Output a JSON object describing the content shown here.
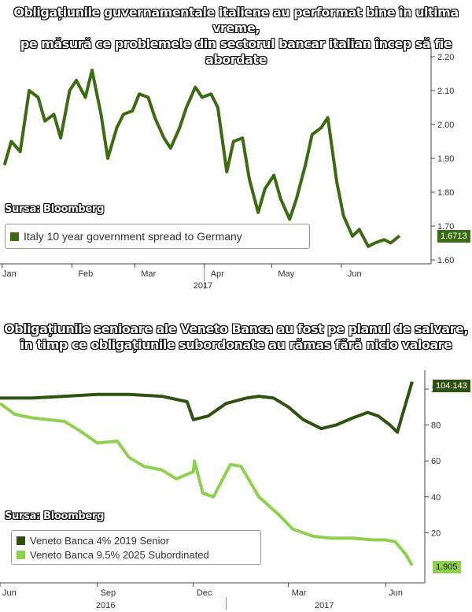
{
  "charts": [
    {
      "title_line1": "Obligațiunile guvernamentale italiene au performat bine în ultima vreme,",
      "title_line2": "pe măsură ce problemele din sectorul bancar italian încep să fie abordate",
      "source": "Sursa: Bloomberg",
      "last_value_label": "1.6713",
      "colors": {
        "line": "#3d6b12",
        "tag": "#3d6b12"
      }
    },
    {
      "title_line1": "Obligațiunile senioare ale Veneto Banca au fost pe planul de salvare,",
      "title_line2": "în timp ce obligațiunile subordonate au rămas fără nicio valoare",
      "source": "Sursa: Bloomberg",
      "last_value_label_senior": "104.143",
      "last_value_label_sub": "1.905",
      "colors": {
        "senior": "#2e5210",
        "sub": "#8fd14f"
      }
    }
  ],
  "chart_data": [
    {
      "type": "line",
      "title": "Obligațiunile guvernamentale italiene au performat bine în ultima vreme, pe măsură ce problemele din sectorul bancar italian încep să fie abordate",
      "x_tick_labels": [
        "Jan",
        "Feb",
        "Mar",
        "Apr",
        "May",
        "Jun"
      ],
      "x_year_label": "2017",
      "y_tick_labels": [
        "2.20",
        "2.10",
        "2.00",
        "1.90",
        "1.80",
        "1.70",
        "1.60"
      ],
      "ylim": [
        1.6,
        2.22
      ],
      "legend_position": "bottom-left",
      "series": [
        {
          "name": "Italy 10 year government spread to Germany",
          "x": [
            "2017-01-02",
            "2017-01-05",
            "2017-01-09",
            "2017-01-13",
            "2017-01-17",
            "2017-01-20",
            "2017-01-24",
            "2017-01-27",
            "2017-01-31",
            "2017-02-03",
            "2017-02-07",
            "2017-02-10",
            "2017-02-14",
            "2017-02-17",
            "2017-02-21",
            "2017-02-24",
            "2017-02-28",
            "2017-03-03",
            "2017-03-07",
            "2017-03-10",
            "2017-03-14",
            "2017-03-17",
            "2017-03-21",
            "2017-03-24",
            "2017-03-28",
            "2017-03-31",
            "2017-04-04",
            "2017-04-07",
            "2017-04-11",
            "2017-04-14",
            "2017-04-18",
            "2017-04-21",
            "2017-04-25",
            "2017-04-28",
            "2017-05-02",
            "2017-05-05",
            "2017-05-09",
            "2017-05-12",
            "2017-05-16",
            "2017-05-19",
            "2017-05-23",
            "2017-05-26",
            "2017-05-30",
            "2017-06-02",
            "2017-06-06",
            "2017-06-09",
            "2017-06-13",
            "2017-06-16",
            "2017-06-20",
            "2017-06-23",
            "2017-06-27"
          ],
          "values": [
            1.88,
            1.95,
            1.92,
            2.1,
            2.08,
            2.01,
            2.03,
            1.96,
            2.1,
            2.13,
            2.08,
            2.16,
            2.03,
            1.9,
            1.99,
            2.03,
            2.04,
            2.09,
            2.08,
            2.02,
            1.96,
            1.93,
            1.99,
            2.05,
            2.11,
            2.08,
            2.09,
            2.05,
            1.86,
            1.95,
            1.96,
            1.84,
            1.74,
            1.81,
            1.85,
            1.78,
            1.72,
            1.78,
            1.88,
            1.97,
            1.99,
            2.02,
            1.83,
            1.73,
            1.67,
            1.69,
            1.64,
            1.65,
            1.66,
            1.65,
            1.6713
          ]
        }
      ]
    },
    {
      "type": "line",
      "title": "Obligațiunile senioare ale Veneto Banca au fost pe planul de salvare, în timp ce obligațiunile subordonate au rămas fără nicio valoare",
      "x_tick_labels": [
        "Jun",
        "Sep",
        "Dec",
        "Mar",
        "Jun"
      ],
      "x_year_labels": [
        "2016",
        "2017"
      ],
      "y_tick_labels": [
        "100",
        "80",
        "60",
        "40",
        "20"
      ],
      "ylim": [
        0,
        108
      ],
      "legend_position": "bottom-left",
      "series": [
        {
          "name": "Veneto Banca 4% 2019 Senior",
          "x": [
            "2016-06-01",
            "2016-07-01",
            "2016-08-01",
            "2016-09-01",
            "2016-10-01",
            "2016-11-01",
            "2016-11-25",
            "2016-12-01",
            "2016-12-15",
            "2017-01-01",
            "2017-01-20",
            "2017-02-01",
            "2017-02-15",
            "2017-03-01",
            "2017-03-15",
            "2017-04-01",
            "2017-04-15",
            "2017-05-01",
            "2017-05-15",
            "2017-05-25",
            "2017-06-05",
            "2017-06-12",
            "2017-06-20",
            "2017-06-26"
          ],
          "values": [
            95,
            95,
            96,
            97,
            97,
            96,
            93,
            83,
            85,
            92,
            95,
            96,
            95,
            90,
            83,
            78,
            80,
            84,
            87,
            85,
            80,
            76,
            92,
            104.143
          ]
        },
        {
          "name": "Veneto Banca 9.5% 2025 Subordinated",
          "x": [
            "2016-06-01",
            "2016-06-15",
            "2016-07-01",
            "2016-08-01",
            "2016-08-15",
            "2016-09-01",
            "2016-09-20",
            "2016-10-01",
            "2016-10-15",
            "2016-11-01",
            "2016-11-15",
            "2016-12-01",
            "2016-12-02",
            "2016-12-10",
            "2016-12-20",
            "2017-01-05",
            "2017-01-15",
            "2017-02-01",
            "2017-02-20",
            "2017-03-05",
            "2017-03-25",
            "2017-04-10",
            "2017-05-01",
            "2017-05-20",
            "2017-06-01",
            "2017-06-10",
            "2017-06-20",
            "2017-06-26"
          ],
          "values": [
            92,
            86,
            84,
            82,
            77,
            70,
            71,
            62,
            57,
            55,
            50,
            54,
            60,
            42,
            40,
            58,
            57,
            40,
            30,
            22,
            18,
            17,
            17,
            16,
            16,
            15,
            8,
            1.905
          ]
        }
      ]
    }
  ]
}
